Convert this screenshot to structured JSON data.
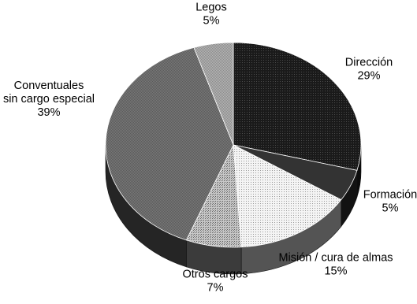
{
  "chart_data": {
    "type": "pie",
    "title": "",
    "slices": [
      {
        "label": "Dirección",
        "label_lines": [
          "Dirección"
        ],
        "value": 29,
        "display": "29%",
        "pattern": "dark-dots",
        "color": "#1e1e1e"
      },
      {
        "label": "Formación",
        "label_lines": [
          "Formación"
        ],
        "value": 5,
        "display": "5%",
        "pattern": "solid",
        "color": "#333333"
      },
      {
        "label": "Misión / cura de almas",
        "label_lines": [
          "Misión / cura de almas"
        ],
        "value": 15,
        "display": "15%",
        "pattern": "fine-dots",
        "color": "#f0f0f0"
      },
      {
        "label": "Otros cargos",
        "label_lines": [
          "Otros cargos"
        ],
        "value": 7,
        "display": "7%",
        "pattern": "dots",
        "color": "#aaaaaa"
      },
      {
        "label": "Conventuales sin cargo especial",
        "label_lines": [
          "Conventuales",
          "sin cargo especial"
        ],
        "value": 39,
        "display": "39%",
        "pattern": "mesh",
        "color": "#6a6a6a"
      },
      {
        "label": "Legos",
        "label_lines": [
          "Legos"
        ],
        "value": 5,
        "display": "5%",
        "pattern": "light-mesh",
        "color": "#a8a8a8"
      }
    ],
    "style": "3d-tilted",
    "start_angle": "12 o'clock",
    "direction": "clockwise",
    "legend": "none (direct labels)"
  }
}
